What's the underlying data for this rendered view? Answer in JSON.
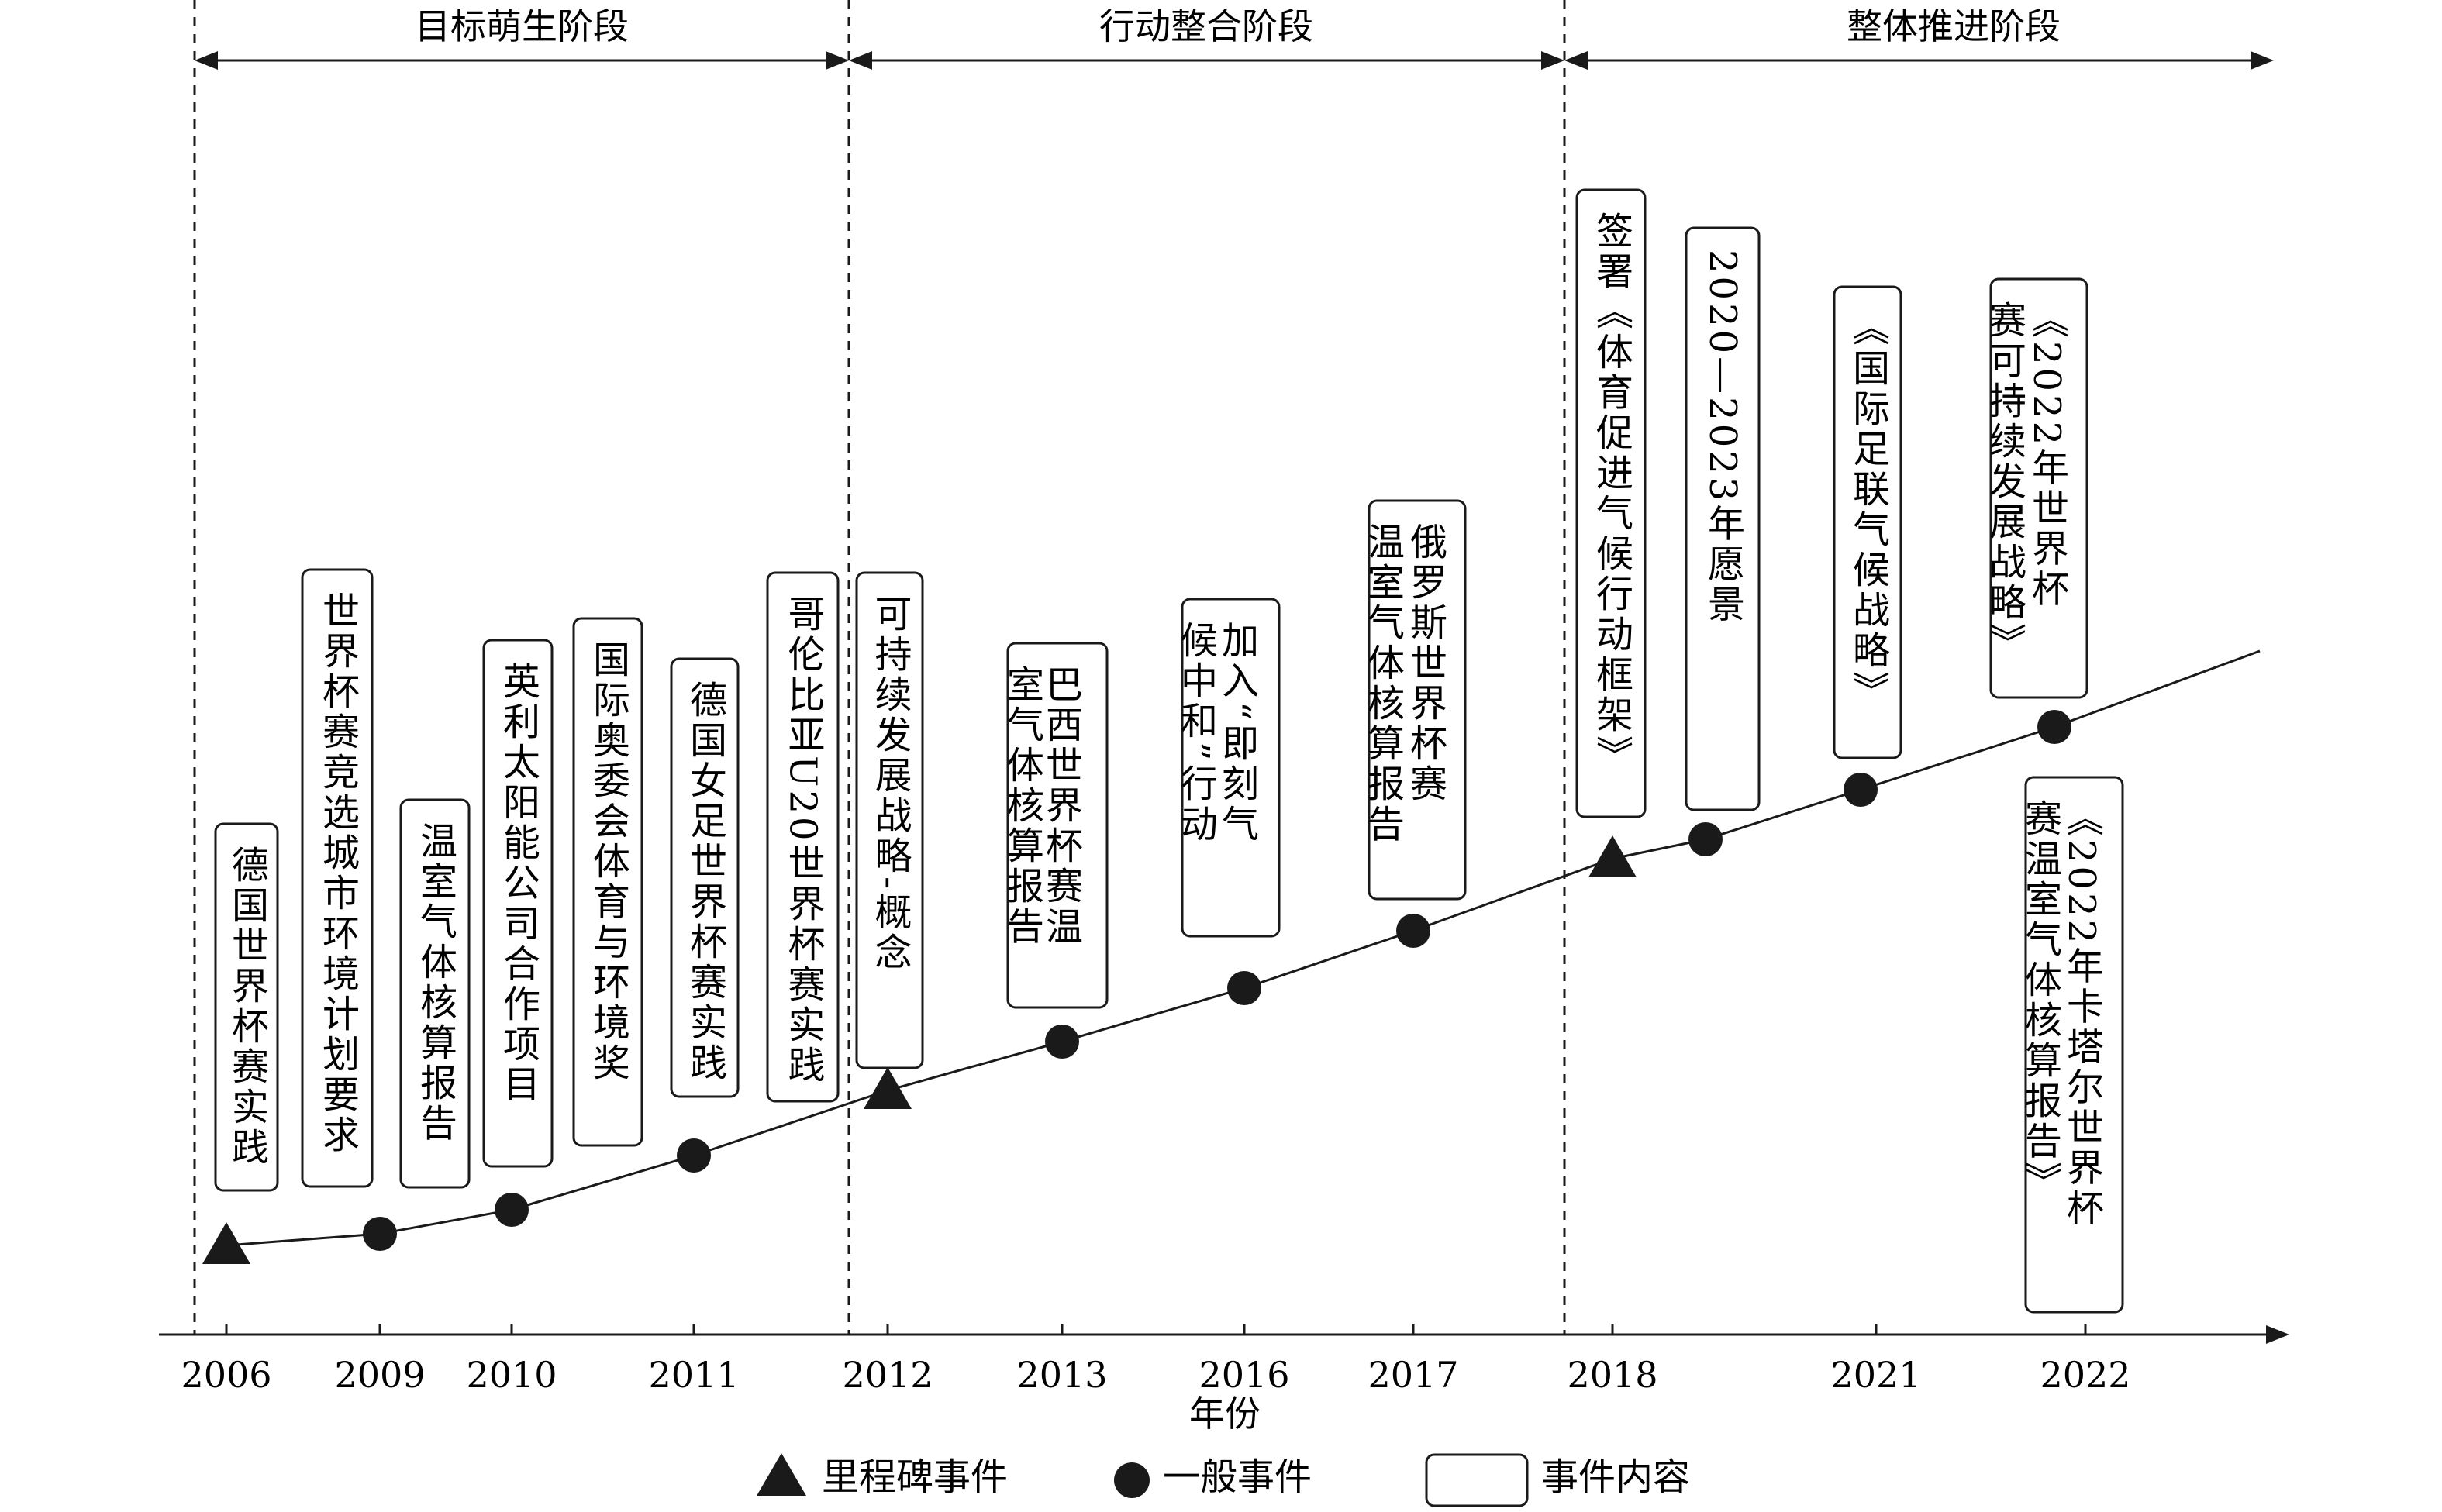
{
  "phases": [
    {
      "label": "目标萌生阶段"
    },
    {
      "label": "行动整合阶段"
    },
    {
      "label": "整体推进阶段"
    }
  ],
  "x_axis": {
    "title": "年份",
    "ticks": [
      "2006",
      "2009",
      "2010",
      "2011",
      "2012",
      "2013",
      "2016",
      "2017",
      "2018",
      "2021",
      "2022"
    ]
  },
  "events": [
    {
      "year": "2006",
      "kind": "milestone",
      "lines": [
        "德国世界杯赛实践"
      ]
    },
    {
      "year": "2009",
      "kind": "general",
      "lines": [
        "世界杯赛竞选城市环境计划要求"
      ]
    },
    {
      "year": "2010",
      "kind": "general",
      "lines": [
        "温室气体核算报告",
        "英利太阳能公司合作项目",
        "国际奥委会体育与环境奖"
      ]
    },
    {
      "year": "2011",
      "kind": "general",
      "lines": [
        "德国女足世界杯赛实践"
      ]
    },
    {
      "year": "2012",
      "kind": "milestone",
      "lines": [
        "哥伦比亚U20世界杯赛实践",
        "可持续发展战略-概念"
      ]
    },
    {
      "year": "2013",
      "kind": "general",
      "lines": [
        "巴西世界杯赛温",
        "室气体核算报告"
      ]
    },
    {
      "year": "2016",
      "kind": "general",
      "lines": [
        "加入“即刻气",
        "候中和”行动"
      ]
    },
    {
      "year": "2017",
      "kind": "general",
      "lines": [
        "俄罗斯世界杯赛",
        "温室气体核算报告"
      ]
    },
    {
      "year": "2018",
      "kind": "milestone",
      "lines": [
        "签署《体育促进气候行动框架》"
      ]
    },
    {
      "year": "2018",
      "kind": "general",
      "lines": [
        "2020—2023年愿景"
      ]
    },
    {
      "year": "2021",
      "kind": "general",
      "lines": [
        "《国际足联气候战略》"
      ]
    },
    {
      "year": "2022",
      "kind": "general",
      "lines": [
        "《2022年世界杯",
        "赛可持续发展战略》",
        "《2022年卡塔尔世界杯",
        "赛温室气体核算报告》"
      ]
    }
  ],
  "legend": {
    "milestone": "里程碑事件",
    "general": "一般事件",
    "content": "事件内容"
  }
}
